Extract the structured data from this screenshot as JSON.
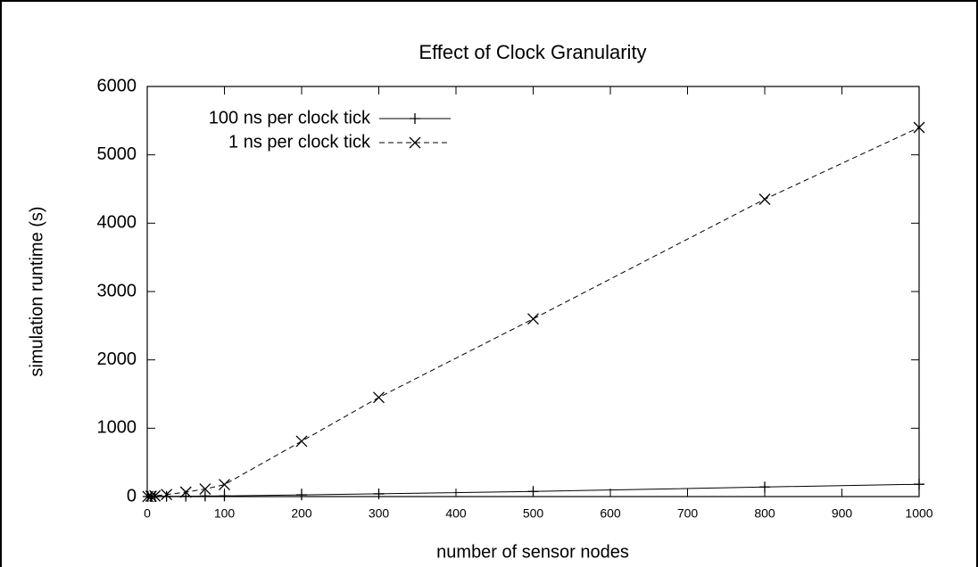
{
  "chart_data": {
    "type": "line",
    "title": "Effect of Clock Granularity",
    "xlabel": "number of sensor nodes",
    "ylabel": "simulation runtime (s)",
    "x": [
      1,
      5,
      10,
      25,
      50,
      75,
      100,
      200,
      300,
      500,
      800,
      1000
    ],
    "series": [
      {
        "name": "100 ns per clock tick",
        "color": "#000000",
        "marker": "plus",
        "dashed": false,
        "values": [
          0.2,
          0.5,
          1,
          3,
          5,
          8,
          10,
          25,
          40,
          75,
          140,
          180
        ]
      },
      {
        "name": "1 ns per clock tick",
        "color": "#000000",
        "marker": "cross",
        "dashed": true,
        "values": [
          1,
          5,
          10,
          30,
          65,
          110,
          175,
          810,
          1450,
          2600,
          4350,
          5400
        ]
      }
    ],
    "xlim": [
      0,
      1000
    ],
    "xticks": [
      0,
      100,
      200,
      300,
      400,
      500,
      600,
      700,
      800,
      900,
      1000
    ],
    "ylim": [
      0,
      6000
    ],
    "yticks": [
      0,
      1000,
      2000,
      3000,
      4000,
      5000,
      6000
    ],
    "legend": "upper left"
  }
}
